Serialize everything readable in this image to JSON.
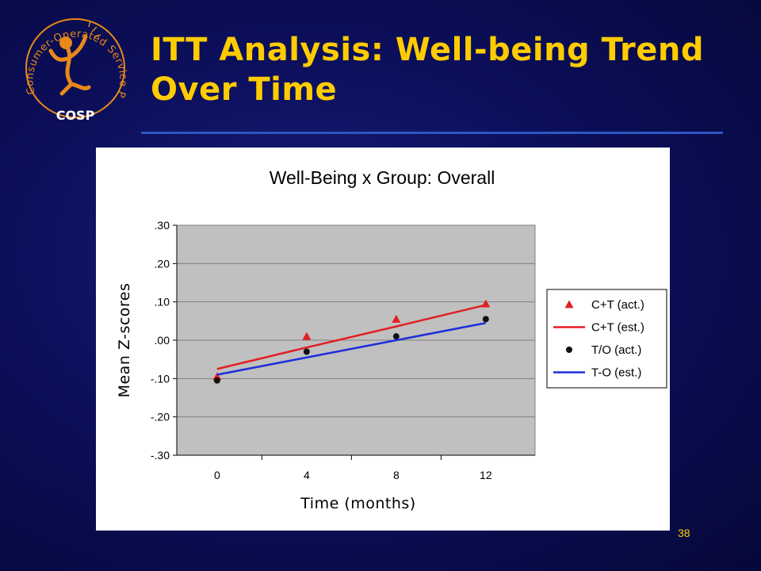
{
  "slide": {
    "title_line1": "ITT Analysis: Well-being Trend",
    "title_line2": "Over Time",
    "number": "38"
  },
  "logo": {
    "arc_text": "Consumer-Operated Service Program",
    "acronym": "COSP"
  },
  "colors": {
    "title": "#ffcc00",
    "rule": "#2b57c4",
    "plot_bg": "#c0c0c0",
    "ct": "#e31e24",
    "to_points": "#111111",
    "to_line": "#1f2fd8"
  },
  "chart_data": {
    "type": "line",
    "title": "Well-Being x Group: Overall",
    "xlabel": "Time (months)",
    "ylabel": "Mean Z-scores",
    "x": [
      0,
      4,
      8,
      12
    ],
    "xticklabels": [
      "0",
      "4",
      "8",
      "12"
    ],
    "ylim": [
      -0.3,
      0.3
    ],
    "yticks": [
      0.3,
      0.2,
      0.1,
      0.0,
      -0.1,
      -0.2,
      -0.3
    ],
    "yticklabels": [
      ".30",
      ".20",
      ".10",
      ".00",
      "-.10",
      "-.20",
      "-.30"
    ],
    "grid": true,
    "legend_position": "right",
    "series": [
      {
        "name": "C+T (act.)",
        "kind": "markers",
        "marker": "triangle",
        "color": "#e31e24",
        "values": [
          -0.095,
          0.01,
          0.055,
          0.095
        ]
      },
      {
        "name": "C+T (est.)",
        "kind": "line",
        "color": "#e31e24",
        "values": [
          -0.075,
          -0.019,
          0.036,
          0.092
        ]
      },
      {
        "name": "T/O (act.)",
        "kind": "markers",
        "marker": "circle",
        "color": "#111111",
        "values": [
          -0.105,
          -0.03,
          0.01,
          0.055
        ]
      },
      {
        "name": "T-O (est.)",
        "kind": "line",
        "color": "#1f2fd8",
        "values": [
          -0.09,
          -0.045,
          0.0,
          0.045
        ]
      }
    ]
  }
}
